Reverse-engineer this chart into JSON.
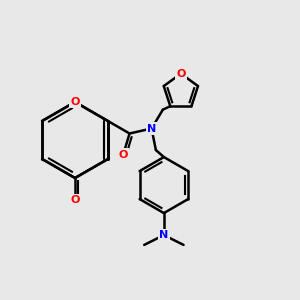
{
  "background_color": "#e8e8e8",
  "bond_color": "#000000",
  "atom_colors": {
    "O": "#ff0000",
    "N": "#0000ff",
    "C": "#000000"
  },
  "title": "",
  "figsize": [
    3.0,
    3.0
  ],
  "dpi": 100
}
